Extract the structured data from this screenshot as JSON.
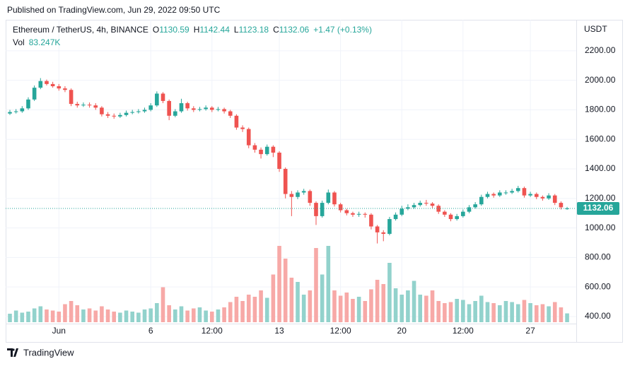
{
  "header": {
    "published": "Published on TradingView.com, Jun 29, 2022 09:50 UTC"
  },
  "legend": {
    "symbol": "Ethereum / TetherUS, 4h, BINANCE",
    "open_label": "O",
    "high_label": "H",
    "low_label": "L",
    "close_label": "C",
    "change": "+1.47 (+0.13%)",
    "volume_name": "Vol",
    "volume_label": "83.247K"
  },
  "footer": {
    "brand": "TradingView"
  },
  "chart_data": {
    "type": "candlestick",
    "y_axis_label": "USDT",
    "up_color": "#26a69a",
    "down_color": "#ef5350",
    "up_volume_color": "#92d2cc",
    "down_volume_color": "#f7a9a7",
    "grid": true,
    "ylim": [
      352,
      2410
    ],
    "yticks": [
      {
        "value": 400,
        "label": "400.00"
      },
      {
        "value": 600,
        "label": "600.00"
      },
      {
        "value": 800,
        "label": "800.00"
      },
      {
        "value": 1000,
        "label": "1000.00"
      },
      {
        "value": 1200,
        "label": "1200.00"
      },
      {
        "value": 1400,
        "label": "1400.00"
      },
      {
        "value": 1600,
        "label": "1600.00"
      },
      {
        "value": 1800,
        "label": "1800.00"
      },
      {
        "value": 2000,
        "label": "2000.00"
      },
      {
        "value": 2200,
        "label": "2200.00"
      }
    ],
    "categories": [
      null,
      null,
      null,
      null,
      null,
      null,
      null,
      null,
      "Jun",
      null,
      null,
      null,
      null,
      null,
      null,
      null,
      null,
      null,
      null,
      null,
      null,
      null,
      null,
      "6",
      null,
      null,
      null,
      null,
      null,
      null,
      null,
      null,
      null,
      "12:00",
      null,
      null,
      null,
      null,
      null,
      null,
      null,
      null,
      null,
      null,
      "13",
      null,
      null,
      null,
      null,
      null,
      null,
      null,
      null,
      null,
      "12:00",
      null,
      null,
      null,
      null,
      null,
      null,
      null,
      null,
      null,
      "20",
      null,
      null,
      null,
      null,
      null,
      null,
      null,
      null,
      null,
      "12:00",
      null,
      null,
      null,
      null,
      null,
      null,
      null,
      null,
      null,
      null,
      "27",
      null,
      null,
      null,
      null,
      null,
      null
    ],
    "open": [
      1775,
      1785,
      1790,
      1810,
      1870,
      1950,
      1995,
      1975,
      1960,
      1945,
      1935,
      1840,
      1830,
      1835,
      1830,
      1815,
      1770,
      1760,
      1755,
      1765,
      1780,
      1785,
      1790,
      1800,
      1830,
      1910,
      1860,
      1760,
      1790,
      1845,
      1810,
      1800,
      1805,
      1815,
      1800,
      1805,
      1790,
      1760,
      1680,
      1670,
      1560,
      1530,
      1500,
      1550,
      1510,
      1400,
      1230,
      1210,
      1240,
      1250,
      1170,
      1080,
      1170,
      1240,
      1160,
      1120,
      1100,
      1090,
      1095,
      1090,
      1010,
      970,
      960,
      1060,
      1090,
      1130,
      1140,
      1155,
      1170,
      1165,
      1150,
      1110,
      1090,
      1060,
      1080,
      1110,
      1140,
      1160,
      1210,
      1230,
      1220,
      1240,
      1240,
      1250,
      1270,
      1220,
      1230,
      1210,
      1200,
      1220,
      1170,
      1130.59
    ],
    "high": [
      1800,
      1805,
      1825,
      1885,
      1965,
      2015,
      2005,
      1990,
      1975,
      1960,
      1945,
      1855,
      1850,
      1850,
      1845,
      1825,
      1785,
      1775,
      1780,
      1795,
      1800,
      1805,
      1815,
      1845,
      1925,
      1920,
      1870,
      1805,
      1875,
      1855,
      1825,
      1820,
      1830,
      1825,
      1820,
      1815,
      1800,
      1770,
      1695,
      1680,
      1575,
      1545,
      1565,
      1560,
      1520,
      1410,
      1250,
      1255,
      1265,
      1260,
      1180,
      1185,
      1260,
      1250,
      1170,
      1130,
      1110,
      1110,
      1105,
      1100,
      1020,
      985,
      1075,
      1105,
      1150,
      1160,
      1170,
      1185,
      1190,
      1175,
      1160,
      1120,
      1100,
      1095,
      1125,
      1155,
      1175,
      1225,
      1245,
      1240,
      1255,
      1255,
      1265,
      1285,
      1280,
      1245,
      1240,
      1220,
      1235,
      1230,
      1180,
      1142.44
    ],
    "low": [
      1765,
      1775,
      1780,
      1800,
      1860,
      1940,
      1965,
      1950,
      1930,
      1920,
      1825,
      1815,
      1820,
      1815,
      1800,
      1755,
      1745,
      1740,
      1745,
      1755,
      1770,
      1775,
      1780,
      1790,
      1820,
      1845,
      1730,
      1750,
      1780,
      1795,
      1785,
      1790,
      1795,
      1785,
      1790,
      1775,
      1745,
      1665,
      1650,
      1540,
      1510,
      1470,
      1490,
      1480,
      1380,
      1200,
      1080,
      1195,
      1225,
      1150,
      1020,
      1070,
      1160,
      1145,
      1105,
      1085,
      1075,
      1075,
      1070,
      990,
      895,
      910,
      950,
      1050,
      1080,
      1120,
      1130,
      1145,
      1150,
      1135,
      1095,
      1075,
      1045,
      1050,
      1070,
      1100,
      1130,
      1150,
      1200,
      1205,
      1210,
      1225,
      1230,
      1240,
      1205,
      1210,
      1195,
      1185,
      1190,
      1155,
      1125,
      1123.18
    ],
    "close": [
      1785,
      1790,
      1810,
      1870,
      1950,
      1995,
      1975,
      1960,
      1945,
      1935,
      1840,
      1830,
      1835,
      1830,
      1815,
      1770,
      1760,
      1755,
      1765,
      1780,
      1785,
      1790,
      1800,
      1830,
      1910,
      1860,
      1760,
      1790,
      1845,
      1810,
      1800,
      1805,
      1815,
      1800,
      1805,
      1790,
      1760,
      1680,
      1670,
      1560,
      1530,
      1500,
      1550,
      1510,
      1400,
      1230,
      1210,
      1240,
      1250,
      1170,
      1080,
      1170,
      1240,
      1160,
      1120,
      1100,
      1090,
      1095,
      1090,
      1010,
      970,
      960,
      1060,
      1090,
      1130,
      1140,
      1155,
      1170,
      1165,
      1150,
      1110,
      1090,
      1060,
      1080,
      1110,
      1140,
      1160,
      1210,
      1230,
      1220,
      1240,
      1240,
      1250,
      1270,
      1220,
      1230,
      1210,
      1200,
      1220,
      1170,
      1140,
      1132.06
    ],
    "volume": [
      80,
      110,
      90,
      100,
      130,
      150,
      120,
      110,
      100,
      170,
      200,
      160,
      120,
      130,
      110,
      150,
      120,
      100,
      90,
      110,
      100,
      90,
      120,
      130,
      180,
      330,
      160,
      120,
      150,
      110,
      130,
      140,
      110,
      100,
      120,
      140,
      190,
      240,
      200,
      260,
      240,
      300,
      230,
      450,
      720,
      600,
      420,
      380,
      260,
      300,
      700,
      450,
      720,
      300,
      250,
      280,
      220,
      240,
      200,
      310,
      400,
      360,
      560,
      320,
      260,
      300,
      390,
      260,
      250,
      300,
      200,
      180,
      190,
      220,
      210,
      170,
      200,
      250,
      190,
      180,
      160,
      200,
      190,
      170,
      210,
      180,
      160,
      170,
      150,
      190,
      140,
      83.247
    ]
  }
}
